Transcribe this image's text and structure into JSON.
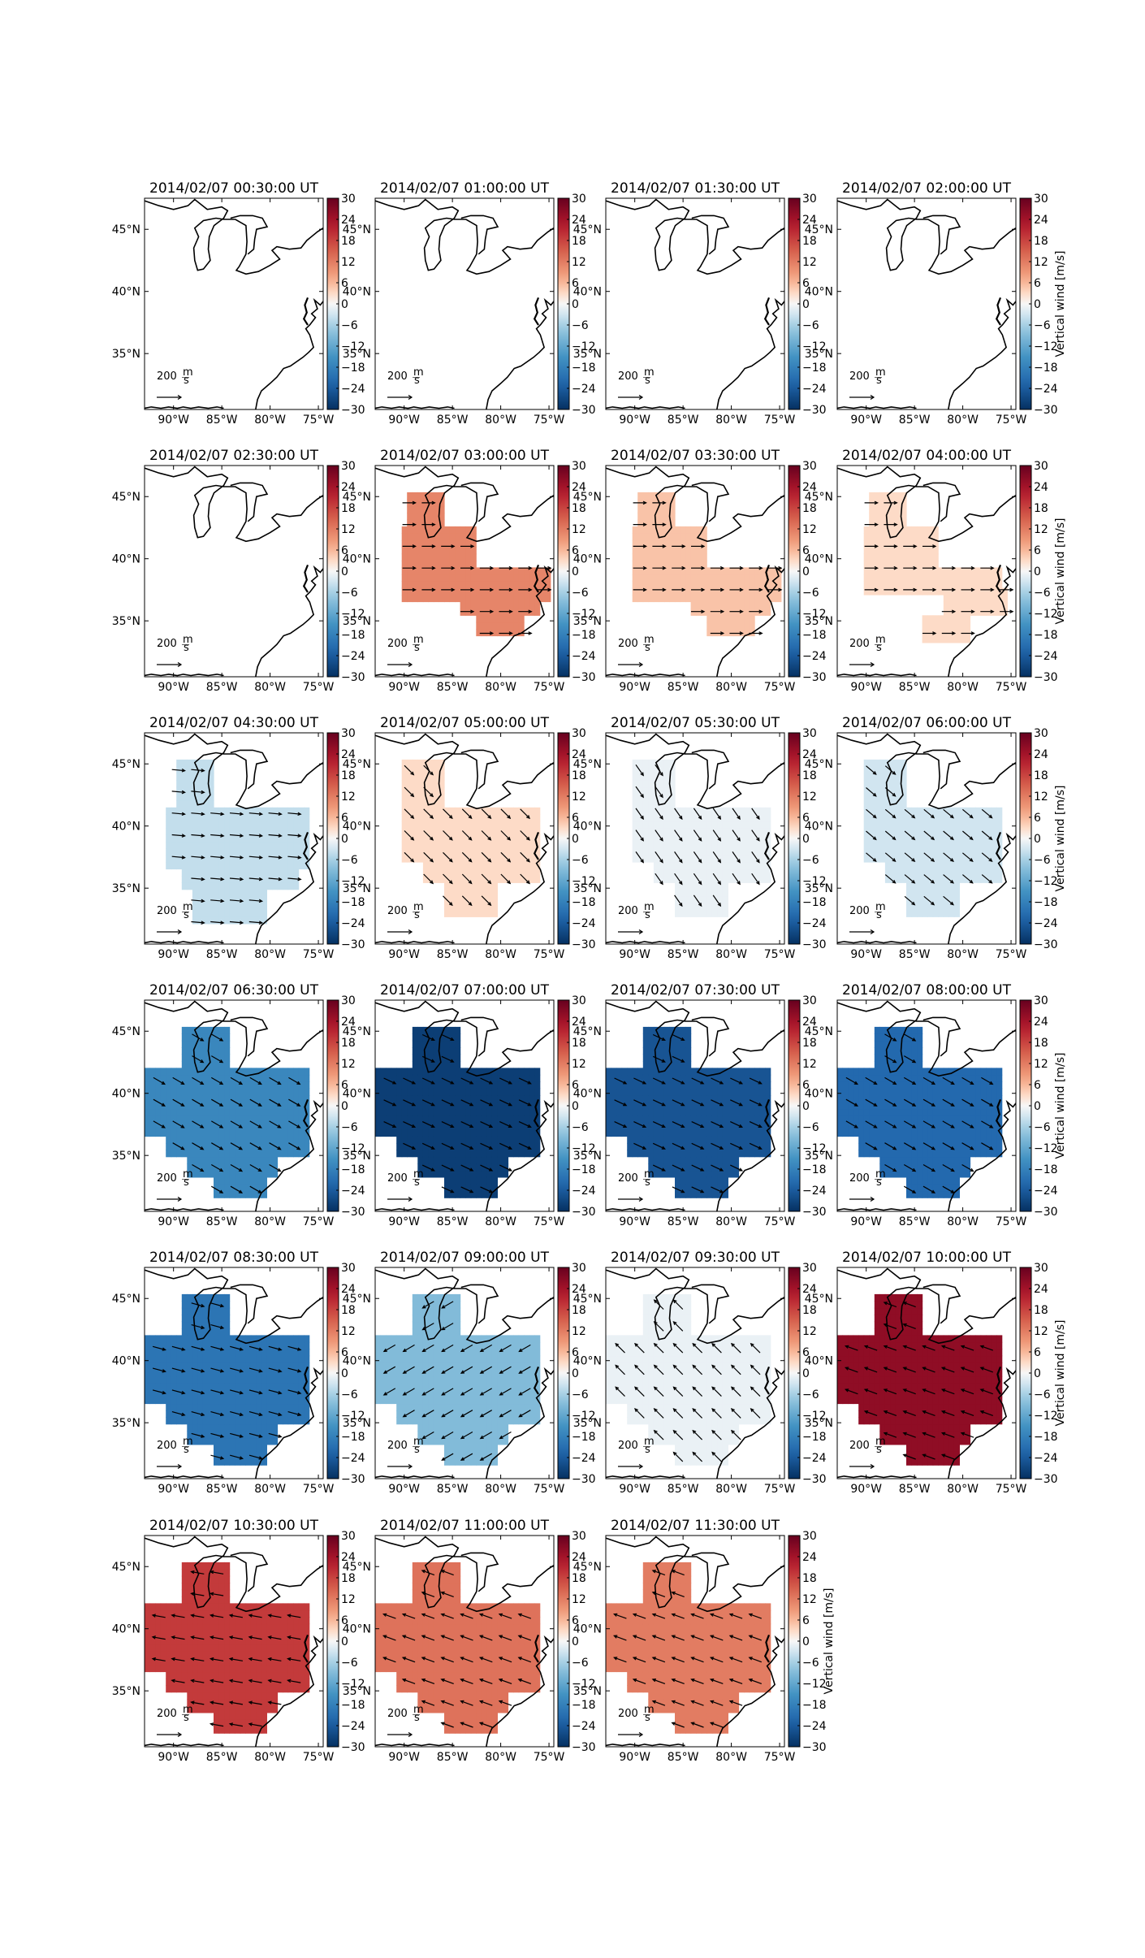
{
  "figure": {
    "colorbar_label": "Vertical wind [m/s]",
    "colorbar_ticks": [
      30,
      24,
      18,
      12,
      6,
      0,
      -6,
      -12,
      -18,
      -24,
      -30
    ],
    "colorbar_tick_labels": [
      "30",
      "24",
      "18",
      "12",
      "6",
      "0",
      "−6",
      "−12",
      "−18",
      "−24",
      "−30"
    ],
    "x_tick_labels": [
      "90°W",
      "85°W",
      "80°W",
      "75°W"
    ],
    "y_tick_labels": [
      "45°N",
      "40°N",
      "35°N"
    ],
    "legend_value": "200",
    "legend_unit_num": "m",
    "legend_unit_den": "s",
    "colormap": "RdBu_r"
  },
  "chart_data": {
    "type": "heatmap",
    "description_units": "vertical wind m/s, diverging red-blue colormap from -30 to 30",
    "vmin": -30,
    "vmax": 30,
    "lon_range": [
      -93,
      -74.5
    ],
    "lat_range": [
      30.5,
      47.5
    ],
    "lon_ticks": [
      -90,
      -85,
      -80,
      -75
    ],
    "lat_ticks": [
      45,
      40,
      35
    ],
    "panels": [
      {
        "title": "2014/02/07 00:30:00 UT",
        "region": "none",
        "value": null
      },
      {
        "title": "2014/02/07 01:00:00 UT",
        "region": "none",
        "value": null
      },
      {
        "title": "2014/02/07 01:30:00 UT",
        "region": "none",
        "value": null
      },
      {
        "title": "2014/02/07 02:00:00 UT",
        "region": "none",
        "value": null
      },
      {
        "title": "2014/02/07 02:30:00 UT",
        "region": "none",
        "value": null
      },
      {
        "title": "2014/02/07 03:00:00 UT",
        "region": "early",
        "value": 11,
        "wind_dir": 0
      },
      {
        "title": "2014/02/07 03:30:00 UT",
        "region": "early",
        "value": 5,
        "wind_dir": 0
      },
      {
        "title": "2014/02/07 04:00:00 UT",
        "region": "early2",
        "value": 3,
        "wind_dir": 0
      },
      {
        "title": "2014/02/07 04:30:00 UT",
        "region": "mid",
        "value": -4,
        "wind_dir": 5
      },
      {
        "title": "2014/02/07 05:00:00 UT",
        "region": "mid2",
        "value": 3,
        "wind_dir": 45
      },
      {
        "title": "2014/02/07 05:30:00 UT",
        "region": "mid2",
        "value": -1,
        "wind_dir": 55
      },
      {
        "title": "2014/02/07 06:00:00 UT",
        "region": "mid2",
        "value": -3,
        "wind_dir": 40
      },
      {
        "title": "2014/02/07 06:30:00 UT",
        "region": "late",
        "value": -17,
        "wind_dir": 30
      },
      {
        "title": "2014/02/07 07:00:00 UT",
        "region": "late",
        "value": -28,
        "wind_dir": 25
      },
      {
        "title": "2014/02/07 07:30:00 UT",
        "region": "late",
        "value": -25,
        "wind_dir": 25
      },
      {
        "title": "2014/02/07 08:00:00 UT",
        "region": "late",
        "value": -22,
        "wind_dir": 30
      },
      {
        "title": "2014/02/07 08:30:00 UT",
        "region": "late",
        "value": -20,
        "wind_dir": 15
      },
      {
        "title": "2014/02/07 09:00:00 UT",
        "region": "late",
        "value": -9,
        "wind_dir": 150
      },
      {
        "title": "2014/02/07 09:30:00 UT",
        "region": "late",
        "value": -1,
        "wind_dir": 225
      },
      {
        "title": "2014/02/07 10:00:00 UT",
        "region": "late",
        "value": 26,
        "wind_dir": 200
      },
      {
        "title": "2014/02/07 10:30:00 UT",
        "region": "late",
        "value": 19,
        "wind_dir": 190
      },
      {
        "title": "2014/02/07 11:00:00 UT",
        "region": "late",
        "value": 13,
        "wind_dir": 200
      },
      {
        "title": "2014/02/07 11:30:00 UT",
        "region": "late",
        "value": 12,
        "wind_dir": 200
      }
    ]
  }
}
